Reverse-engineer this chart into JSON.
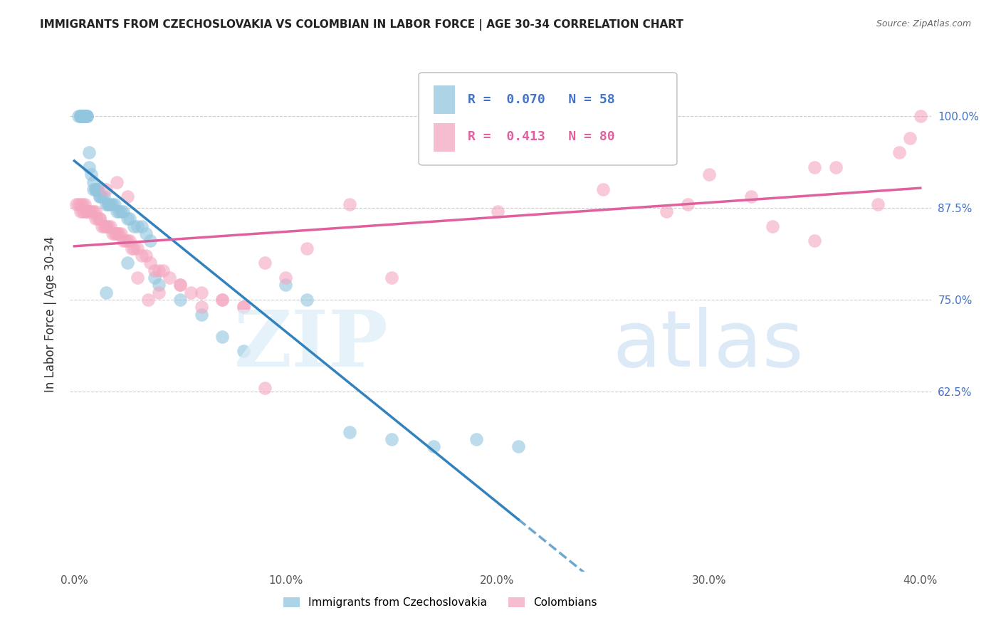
{
  "title": "IMMIGRANTS FROM CZECHOSLOVAKIA VS COLOMBIAN IN LABOR FORCE | AGE 30-34 CORRELATION CHART",
  "source": "Source: ZipAtlas.com",
  "ylabel": "In Labor Force | Age 30-34",
  "xlim": [
    -0.002,
    0.405
  ],
  "ylim": [
    0.38,
    1.08
  ],
  "yticks": [
    0.625,
    0.75,
    0.875,
    1.0
  ],
  "ytick_labels": [
    "62.5%",
    "75.0%",
    "87.5%",
    "100.0%"
  ],
  "xticks": [
    0.0,
    0.1,
    0.2,
    0.3,
    0.4
  ],
  "xtick_labels": [
    "0.0%",
    "10.0%",
    "20.0%",
    "30.0%",
    "40.0%"
  ],
  "blue_color": "#92c5de",
  "pink_color": "#f4a6bf",
  "blue_line_color": "#3182bd",
  "pink_line_color": "#e0609e",
  "legend_r1": "R =  0.070",
  "legend_n1": "N = 58",
  "legend_r2": "R =  0.413",
  "legend_n2": "N = 80",
  "blue_x": [
    0.002,
    0.003,
    0.003,
    0.003,
    0.004,
    0.004,
    0.004,
    0.005,
    0.005,
    0.005,
    0.006,
    0.006,
    0.006,
    0.007,
    0.007,
    0.008,
    0.009,
    0.009,
    0.01,
    0.01,
    0.011,
    0.011,
    0.012,
    0.012,
    0.013,
    0.014,
    0.015,
    0.016,
    0.016,
    0.017,
    0.018,
    0.019,
    0.02,
    0.021,
    0.022,
    0.023,
    0.025,
    0.026,
    0.028,
    0.03,
    0.032,
    0.034,
    0.036,
    0.038,
    0.04,
    0.05,
    0.06,
    0.07,
    0.08,
    0.1,
    0.11,
    0.13,
    0.15,
    0.17,
    0.19,
    0.21,
    0.015,
    0.025
  ],
  "blue_y": [
    1.0,
    1.0,
    1.0,
    1.0,
    1.0,
    1.0,
    1.0,
    1.0,
    1.0,
    1.0,
    1.0,
    1.0,
    1.0,
    0.95,
    0.93,
    0.92,
    0.91,
    0.9,
    0.9,
    0.9,
    0.9,
    0.9,
    0.89,
    0.89,
    0.89,
    0.89,
    0.88,
    0.88,
    0.88,
    0.88,
    0.88,
    0.88,
    0.87,
    0.87,
    0.87,
    0.87,
    0.86,
    0.86,
    0.85,
    0.85,
    0.85,
    0.84,
    0.83,
    0.78,
    0.77,
    0.75,
    0.73,
    0.7,
    0.68,
    0.77,
    0.75,
    0.57,
    0.56,
    0.55,
    0.56,
    0.55,
    0.76,
    0.8
  ],
  "pink_x": [
    0.001,
    0.002,
    0.003,
    0.003,
    0.004,
    0.004,
    0.005,
    0.005,
    0.006,
    0.006,
    0.007,
    0.007,
    0.008,
    0.009,
    0.01,
    0.01,
    0.011,
    0.012,
    0.012,
    0.013,
    0.014,
    0.015,
    0.015,
    0.016,
    0.017,
    0.018,
    0.019,
    0.02,
    0.02,
    0.021,
    0.022,
    0.023,
    0.024,
    0.025,
    0.026,
    0.027,
    0.028,
    0.03,
    0.032,
    0.034,
    0.036,
    0.038,
    0.04,
    0.042,
    0.045,
    0.05,
    0.055,
    0.06,
    0.07,
    0.08,
    0.09,
    0.1,
    0.11,
    0.13,
    0.15,
    0.2,
    0.25,
    0.3,
    0.35,
    0.39,
    0.395,
    0.4,
    0.015,
    0.02,
    0.025,
    0.03,
    0.035,
    0.04,
    0.05,
    0.06,
    0.07,
    0.08,
    0.09,
    0.29,
    0.32,
    0.36,
    0.38,
    0.35,
    0.28,
    0.33
  ],
  "pink_y": [
    0.88,
    0.88,
    0.87,
    0.88,
    0.88,
    0.87,
    0.87,
    0.88,
    0.87,
    0.87,
    0.87,
    0.87,
    0.87,
    0.87,
    0.87,
    0.86,
    0.86,
    0.86,
    0.86,
    0.85,
    0.85,
    0.85,
    0.85,
    0.85,
    0.85,
    0.84,
    0.84,
    0.84,
    0.84,
    0.84,
    0.84,
    0.83,
    0.83,
    0.83,
    0.83,
    0.82,
    0.82,
    0.82,
    0.81,
    0.81,
    0.8,
    0.79,
    0.79,
    0.79,
    0.78,
    0.77,
    0.76,
    0.76,
    0.75,
    0.74,
    0.8,
    0.78,
    0.82,
    0.88,
    0.78,
    0.87,
    0.9,
    0.92,
    0.93,
    0.95,
    0.97,
    1.0,
    0.9,
    0.91,
    0.89,
    0.78,
    0.75,
    0.76,
    0.77,
    0.74,
    0.75,
    0.74,
    0.63,
    0.88,
    0.89,
    0.93,
    0.88,
    0.83,
    0.87,
    0.85
  ]
}
